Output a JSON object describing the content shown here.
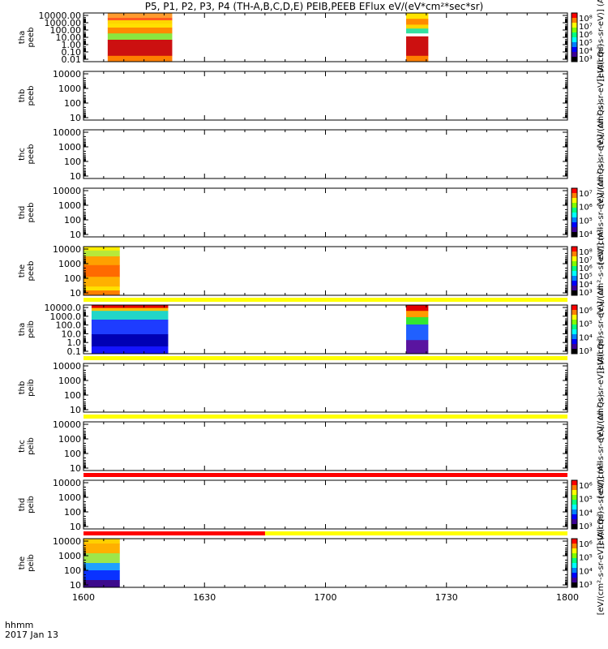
{
  "title": "P5, P1, P2, P3, P4 (TH-A,B,C,D,E) PEIB,PEEB EFlux eV/(eV*cm²*sec*sr)",
  "footer": {
    "line1": "hhmm",
    "line2": "2017 Jan 13"
  },
  "colors": {
    "bar_yellow": "#ffff00",
    "bar_red": "#ff0000"
  },
  "chart_data": {
    "type": "heatmap",
    "x": {
      "ticks": [
        "1600",
        "1630",
        "1700",
        "1730",
        "1800"
      ],
      "range_hhmm": [
        "16:00",
        "18:00"
      ]
    },
    "panels": [
      {
        "id": "tha_peeb",
        "label_top": "tha",
        "label_bottom": "peeb",
        "log": true,
        "yticks": [
          "10000.00",
          "1000.00",
          "100.00",
          "10.00",
          "1.00",
          "0.10",
          "0.01"
        ],
        "colorbar": true,
        "cbar_ticks": [
          "10⁸",
          "10⁷",
          "10⁶",
          "10⁵",
          "10⁴",
          "10³"
        ],
        "cbar_label": "[eV/(cm²-s-sr-eV)] (All",
        "blocks": [
          {
            "t0": 6,
            "t1": 22,
            "bands": [
              [
                "#ff9b2e",
                0.0,
                0.1
              ],
              [
                "#ff5a20",
                0.1,
                0.15
              ],
              [
                "#ffd500",
                0.15,
                0.22
              ],
              [
                "#ffe000",
                0.22,
                0.3
              ],
              [
                "#ff8a00",
                0.3,
                0.42
              ],
              [
                "#8ae63f",
                0.42,
                0.55
              ],
              [
                "#cc1010",
                0.55,
                0.88
              ],
              [
                "#ff7f00",
                0.88,
                1.0
              ]
            ]
          },
          {
            "t0": 80,
            "t1": 85.5,
            "bands": [
              [
                "#ffe400",
                0.0,
                0.12
              ],
              [
                "#ff8a00",
                0.12,
                0.24
              ],
              [
                "#ffd500",
                0.24,
                0.32
              ],
              [
                "#34e0a0",
                0.32,
                0.42
              ],
              [
                "#ffffff",
                0.42,
                0.48
              ],
              [
                "#cc1010",
                0.48,
                0.88
              ],
              [
                "#ff7f00",
                0.88,
                1.0
              ]
            ]
          }
        ]
      },
      {
        "id": "thb_peeb",
        "label_top": "thb",
        "label_bottom": "peeb",
        "log": true,
        "yticks": [
          "10000",
          "1000",
          "100",
          "10"
        ],
        "colorbar": false,
        "cbar_label": "[eV/(cm²-s-sr-eV)] (All Qs)",
        "blocks": []
      },
      {
        "id": "thc_peeb",
        "label_top": "thc",
        "label_bottom": "peeb",
        "log": true,
        "yticks": [
          "10000",
          "1000",
          "100",
          "10"
        ],
        "colorbar": false,
        "cbar_label": "[eV/(cm²-s-sr-eV)] (All Qs)",
        "blocks": []
      },
      {
        "id": "thd_peeb",
        "label_top": "thd",
        "label_bottom": "peeb",
        "log": true,
        "yticks": [
          "10000",
          "1000",
          "100",
          "10"
        ],
        "colorbar": true,
        "cbar_ticks": [
          "10⁷",
          "10⁶",
          "10⁵",
          "10⁴"
        ],
        "cbar_label": "[eV/(cm²-s-sr-eV)] (All Qs)",
        "blocks": []
      },
      {
        "id": "the_peeb",
        "label_top": "the",
        "label_bottom": "peeb",
        "log": true,
        "yticks": [
          "10000",
          "1000",
          "100",
          "10"
        ],
        "colorbar": true,
        "cbar_ticks": [
          "10⁸",
          "10⁷",
          "10⁶",
          "10⁵",
          "10⁴",
          "10³"
        ],
        "cbar_label": "[eV/(cm²-s-sr-eV)] (All",
        "blocks": [
          {
            "t0": 0,
            "t1": 9,
            "bands": [
              [
                "#ffee00",
                0.0,
                0.08
              ],
              [
                "#b6e93a",
                0.08,
                0.2
              ],
              [
                "#ffa000",
                0.2,
                0.38
              ],
              [
                "#ff6a00",
                0.38,
                0.62
              ],
              [
                "#ffb000",
                0.62,
                0.82
              ],
              [
                "#ffe000",
                0.82,
                0.9
              ],
              [
                "#ff7f00",
                0.9,
                1.0
              ]
            ]
          }
        ]
      },
      {
        "id": "tha_peib",
        "label_top": "tha",
        "label_bottom": "peib",
        "log": true,
        "yticks": [
          "10000.0",
          "1000.0",
          "100.0",
          "10.0",
          "1.0",
          "0.1"
        ],
        "colorbar": true,
        "cbar_ticks": [
          "10⁶",
          "10⁵",
          "10⁴",
          "10³"
        ],
        "cbar_label": "[eV/(cm²-s-sr-eV)] (All",
        "bar_above": [
          {
            "color": "#ffff00",
            "t0": 0,
            "t1": 120
          }
        ],
        "blocks": [
          {
            "t0": 2,
            "t1": 21,
            "bands": [
              [
                "#e10000",
                0.0,
                0.06
              ],
              [
                "#ffc000",
                0.06,
                0.12
              ],
              [
                "#22d6c8",
                0.12,
                0.3
              ],
              [
                "#1e3cff",
                0.3,
                0.6
              ],
              [
                "#0000b4",
                0.6,
                0.85
              ],
              [
                "#1414ff",
                0.85,
                1.0
              ]
            ]
          },
          {
            "t0": 80,
            "t1": 85.5,
            "bands": [
              [
                "#e10000",
                0.0,
                0.12
              ],
              [
                "#ff9b00",
                0.12,
                0.25
              ],
              [
                "#32e632",
                0.25,
                0.4
              ],
              [
                "#2060ff",
                0.4,
                0.72
              ],
              [
                "#5a14a0",
                0.72,
                1.0
              ]
            ]
          }
        ]
      },
      {
        "id": "thb_peib",
        "label_top": "thb",
        "label_bottom": "peib",
        "log": true,
        "yticks": [
          "10000",
          "1000",
          "100",
          "10"
        ],
        "colorbar": false,
        "cbar_label": "[eV/(cm²-s-sr-eV)] (All Qs)",
        "bar_above": [
          {
            "color": "#ffff00",
            "t0": 0,
            "t1": 120
          }
        ],
        "blocks": []
      },
      {
        "id": "thc_peib",
        "label_top": "thc",
        "label_bottom": "peib",
        "log": true,
        "yticks": [
          "10000",
          "1000",
          "100",
          "10"
        ],
        "colorbar": false,
        "cbar_label": "[eV/(cm²-s-sr-eV)] (All Qs)",
        "bar_above": [
          {
            "color": "#ffff00",
            "t0": 0,
            "t1": 120
          }
        ],
        "blocks": []
      },
      {
        "id": "thd_peib",
        "label_top": "thd",
        "label_bottom": "peib",
        "log": true,
        "yticks": [
          "10000",
          "1000",
          "100",
          "10"
        ],
        "colorbar": true,
        "cbar_ticks": [
          "10⁶",
          "10⁵",
          "10⁴",
          "10³"
        ],
        "cbar_label": "[eV/(cm²-s-sr-eV)] (All",
        "bar_above": [
          {
            "color": "#ff0000",
            "t0": 0,
            "t1": 120
          }
        ],
        "blocks": []
      },
      {
        "id": "the_peib",
        "label_top": "the",
        "label_bottom": "peib",
        "log": true,
        "yticks": [
          "10000",
          "1000",
          "100",
          "10"
        ],
        "colorbar": true,
        "cbar_ticks": [
          "10⁶",
          "10⁵",
          "10⁴",
          "10³"
        ],
        "cbar_label": "[eV/(cm²-s-sr-eV)] (All Qs)",
        "bar_above": [
          {
            "color": "#ffff00",
            "t0": 0,
            "t1": 120
          },
          {
            "color": "#ff0000",
            "t0": 0,
            "t1": 45
          }
        ],
        "blocks": [
          {
            "t0": 0,
            "t1": 9,
            "bands": [
              [
                "#ffd000",
                0.0,
                0.1
              ],
              [
                "#ffb000",
                0.1,
                0.3
              ],
              [
                "#9ee64a",
                0.3,
                0.5
              ],
              [
                "#20a0ff",
                0.5,
                0.65
              ],
              [
                "#0a32ff",
                0.65,
                0.85
              ],
              [
                "#3c0a8c",
                0.85,
                1.0
              ]
            ]
          }
        ]
      }
    ]
  }
}
